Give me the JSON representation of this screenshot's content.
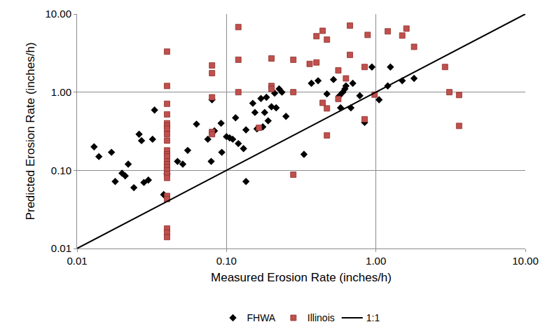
{
  "chart_data": {
    "type": "scatter",
    "x_label": "Measured Erosion Rate (inches/h)",
    "y_label": "Predicted Erosion Rate (inches/h)",
    "log": true,
    "grid": true,
    "legend": "bottom",
    "xlim": [
      0.01,
      10
    ],
    "ylim": [
      0.01,
      10
    ],
    "xticks": [
      0.01,
      {
        "value": 0.1,
        "label": "0.10"
      },
      {
        "value": 1,
        "label": "1.00"
      },
      {
        "value": 10,
        "label": "10.00"
      }
    ],
    "yticks": [
      0.01,
      {
        "value": 0.1,
        "label": "0.10"
      },
      {
        "value": 1,
        "label": "1.00"
      },
      {
        "value": 10,
        "label": "10.00"
      }
    ],
    "series": [
      {
        "name": "FHWA",
        "color": "#000000",
        "marker": "diamond",
        "x": [
          0.013,
          0.014,
          0.017,
          0.018,
          0.02,
          0.021,
          0.022,
          0.024,
          0.026,
          0.027,
          0.028,
          0.03,
          0.032,
          0.033,
          0.038,
          0.04,
          0.047,
          0.051,
          0.055,
          0.063,
          0.075,
          0.079,
          0.08,
          0.083,
          0.092,
          0.093,
          0.1,
          0.105,
          0.11,
          0.115,
          0.12,
          0.13,
          0.135,
          0.135,
          0.15,
          0.155,
          0.16,
          0.17,
          0.175,
          0.18,
          0.185,
          0.19,
          0.2,
          0.21,
          0.215,
          0.225,
          0.235,
          0.25,
          0.33,
          0.37,
          0.41,
          0.47,
          0.52,
          0.57,
          0.58,
          0.6,
          0.62,
          0.63,
          0.68,
          0.7,
          0.78,
          0.84,
          0.94,
          1.05,
          1.2,
          1.25,
          1.5,
          1.8
        ],
        "values": [
          0.2,
          0.15,
          0.17,
          0.072,
          0.092,
          0.085,
          0.12,
          0.06,
          0.29,
          0.24,
          0.07,
          0.075,
          0.25,
          0.59,
          0.049,
          0.09,
          0.13,
          0.12,
          0.18,
          0.39,
          0.25,
          0.13,
          0.8,
          0.32,
          0.4,
          0.17,
          0.27,
          0.26,
          0.25,
          0.47,
          0.22,
          0.19,
          0.33,
          0.072,
          0.72,
          0.55,
          0.34,
          0.83,
          0.36,
          0.55,
          0.86,
          0.43,
          0.65,
          0.97,
          0.63,
          1.1,
          1.0,
          0.49,
          0.16,
          1.3,
          1.4,
          0.95,
          1.45,
          0.9,
          0.63,
          1.0,
          1.1,
          1.2,
          0.63,
          1.3,
          0.9,
          0.41,
          2.1,
          0.8,
          1.2,
          2.1,
          1.4,
          1.5
        ]
      },
      {
        "name": "Illinois",
        "color": "#c0504d",
        "marker": "square",
        "x": [
          0.04,
          0.04,
          0.04,
          0.04,
          0.04,
          0.04,
          0.04,
          0.04,
          0.04,
          0.04,
          0.04,
          0.04,
          0.04,
          0.04,
          0.04,
          0.04,
          0.04,
          0.04,
          0.04,
          0.04,
          0.04,
          0.04,
          0.04,
          0.08,
          0.08,
          0.08,
          0.08,
          0.08,
          0.12,
          0.12,
          0.12,
          0.165,
          0.2,
          0.2,
          0.2,
          0.28,
          0.28,
          0.28,
          0.36,
          0.4,
          0.4,
          0.44,
          0.44,
          0.47,
          0.47,
          0.47,
          0.56,
          0.56,
          0.63,
          0.67,
          0.67,
          0.84,
          0.84,
          0.88,
          0.98,
          1.2,
          1.5,
          1.6,
          1.8,
          2.9,
          3.1,
          3.6,
          3.6
        ],
        "values": [
          3.3,
          1.2,
          0.71,
          0.52,
          0.4,
          0.37,
          0.34,
          0.29,
          0.24,
          0.18,
          0.16,
          0.15,
          0.13,
          0.12,
          0.11,
          0.1,
          0.09,
          0.08,
          0.047,
          0.043,
          0.018,
          0.016,
          0.014,
          2.2,
          1.75,
          0.86,
          0.31,
          0.29,
          6.8,
          2.6,
          1.0,
          0.35,
          2.7,
          1.2,
          1.1,
          2.6,
          1.0,
          0.088,
          2.3,
          5.2,
          2.4,
          6.1,
          0.73,
          4.7,
          0.62,
          0.28,
          1.9,
          0.82,
          1.5,
          7.1,
          3.0,
          2.1,
          0.45,
          5.4,
          0.93,
          6.0,
          5.3,
          6.5,
          3.8,
          2.1,
          1.0,
          0.92,
          0.37
        ]
      },
      {
        "name": "1:1",
        "color": "#000000",
        "type": "line",
        "line_style": "solid",
        "x": [
          0.01,
          10
        ],
        "values": [
          0.01,
          10
        ]
      }
    ]
  }
}
